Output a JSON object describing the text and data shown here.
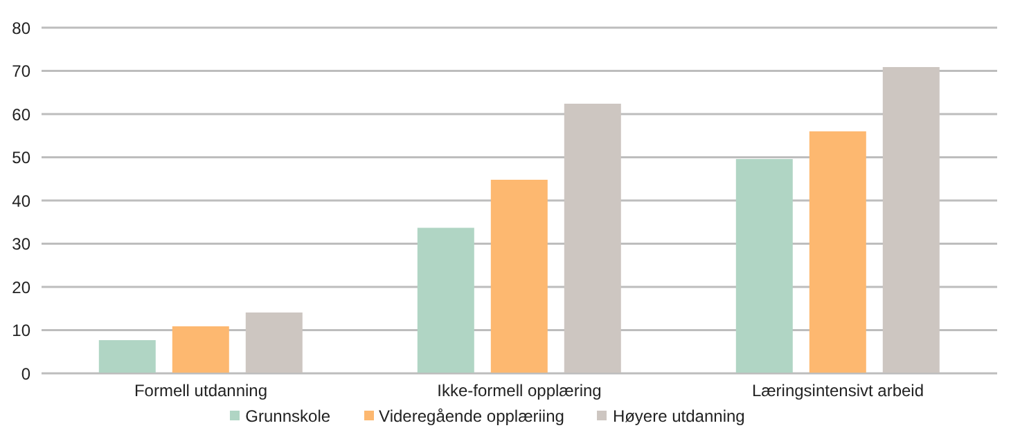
{
  "chart_data": {
    "type": "bar",
    "categories": [
      "Formell utdanning",
      "Ikke-formell opplæring",
      "Læringsintensivt arbeid"
    ],
    "series": [
      {
        "name": "Grunnskole",
        "color": "#b0d5c4",
        "values": [
          7.7,
          33.7,
          49.6
        ]
      },
      {
        "name": "Videregående opplæriing",
        "color": "#fdb870",
        "values": [
          10.9,
          44.8,
          56
        ]
      },
      {
        "name": "Høyere utdanning",
        "color": "#cdc6c1",
        "values": [
          14.1,
          62.4,
          70.9
        ]
      }
    ],
    "ylim": [
      0,
      80
    ],
    "yticks": [
      0,
      10,
      20,
      30,
      40,
      50,
      60,
      70,
      80
    ],
    "grid": "y",
    "legend": "bottom"
  }
}
